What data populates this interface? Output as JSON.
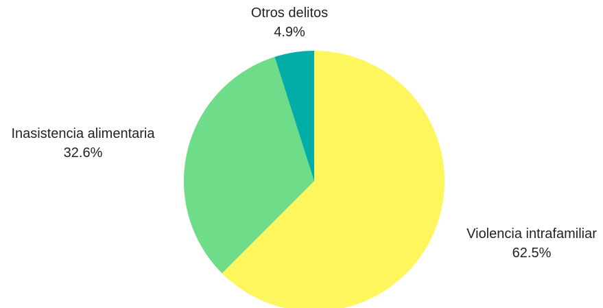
{
  "chart_data": {
    "type": "pie",
    "title": "",
    "start_angle_deg": 0,
    "direction": "clockwise",
    "slices": [
      {
        "label": "Violencia intrafamiliar",
        "value": 62.5,
        "value_label": "62.5%",
        "color": "#fdf65c"
      },
      {
        "label": "Inasistencia alimentaria",
        "value": 32.6,
        "value_label": "32.6%",
        "color": "#6edc88"
      },
      {
        "label": "Otros delitos",
        "value": 4.9,
        "value_label": "4.9%",
        "color": "#02ada8"
      }
    ],
    "legend": "none",
    "labels_outside": true
  }
}
